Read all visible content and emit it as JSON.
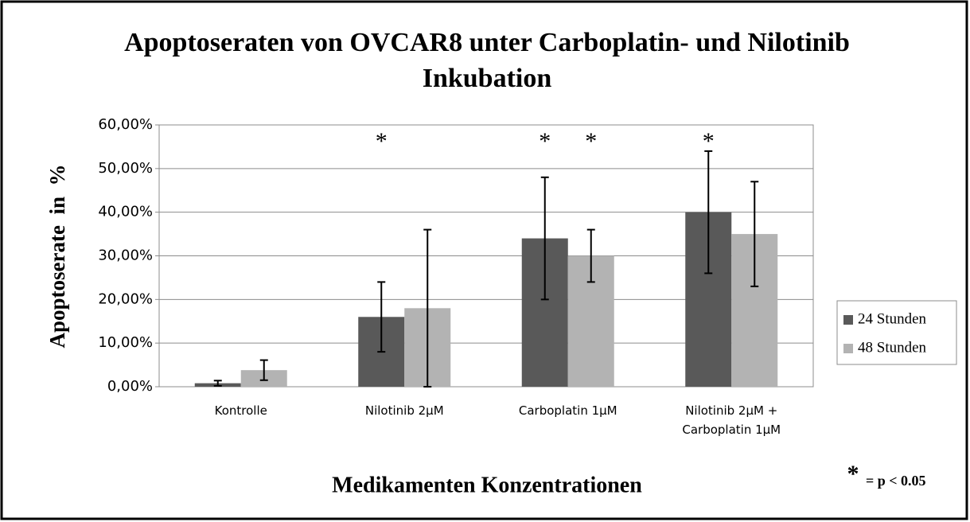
{
  "chart_data": {
    "type": "bar",
    "title": "Apoptoseraten von OVCAR8 unter Carboplatin- und Nilotinib Inkubation",
    "x_label": "Medikamenten Konzentrationen",
    "y_label": "Apoptoserate  in  %",
    "categories": [
      "Kontrolle",
      "Nilotinib 2µM",
      "Carboplatin 1µM",
      "Nilotinib 2µM + Carboplatin 1µM"
    ],
    "series": [
      {
        "name": "24 Stunden",
        "color": "#595959",
        "values": [
          0.8,
          16,
          34,
          40
        ],
        "errors": [
          0.6,
          8,
          14,
          14
        ]
      },
      {
        "name": "48 Stunden",
        "color": "#b3b3b3",
        "values": [
          3.8,
          18,
          30,
          35
        ],
        "errors": [
          2.3,
          18,
          6,
          12
        ]
      }
    ],
    "ylim": [
      0,
      60
    ],
    "yticks": [
      {
        "value": 0,
        "label": "0,00%"
      },
      {
        "value": 10,
        "label": "10,00%"
      },
      {
        "value": 20,
        "label": "20,00%"
      },
      {
        "value": 30,
        "label": "30,00%"
      },
      {
        "value": 40,
        "label": "40,00%"
      },
      {
        "value": 50,
        "label": "50,00%"
      },
      {
        "value": 60,
        "label": "60,00%"
      }
    ],
    "grid": true,
    "legend": "right",
    "annotations": [
      {
        "text": "*",
        "category": "Nilotinib 2µM",
        "series": "24 Stunden"
      },
      {
        "text": "*",
        "category": "Carboplatin 1µM",
        "series": "24 Stunden"
      },
      {
        "text": "*",
        "category": "Carboplatin 1µM",
        "series": "48 Stunden"
      },
      {
        "text": "*",
        "category": "Nilotinib 2µM + Carboplatin 1µM",
        "series": "24 Stunden"
      }
    ],
    "note": {
      "symbol": "*",
      "text": "= p < 0.05"
    }
  }
}
